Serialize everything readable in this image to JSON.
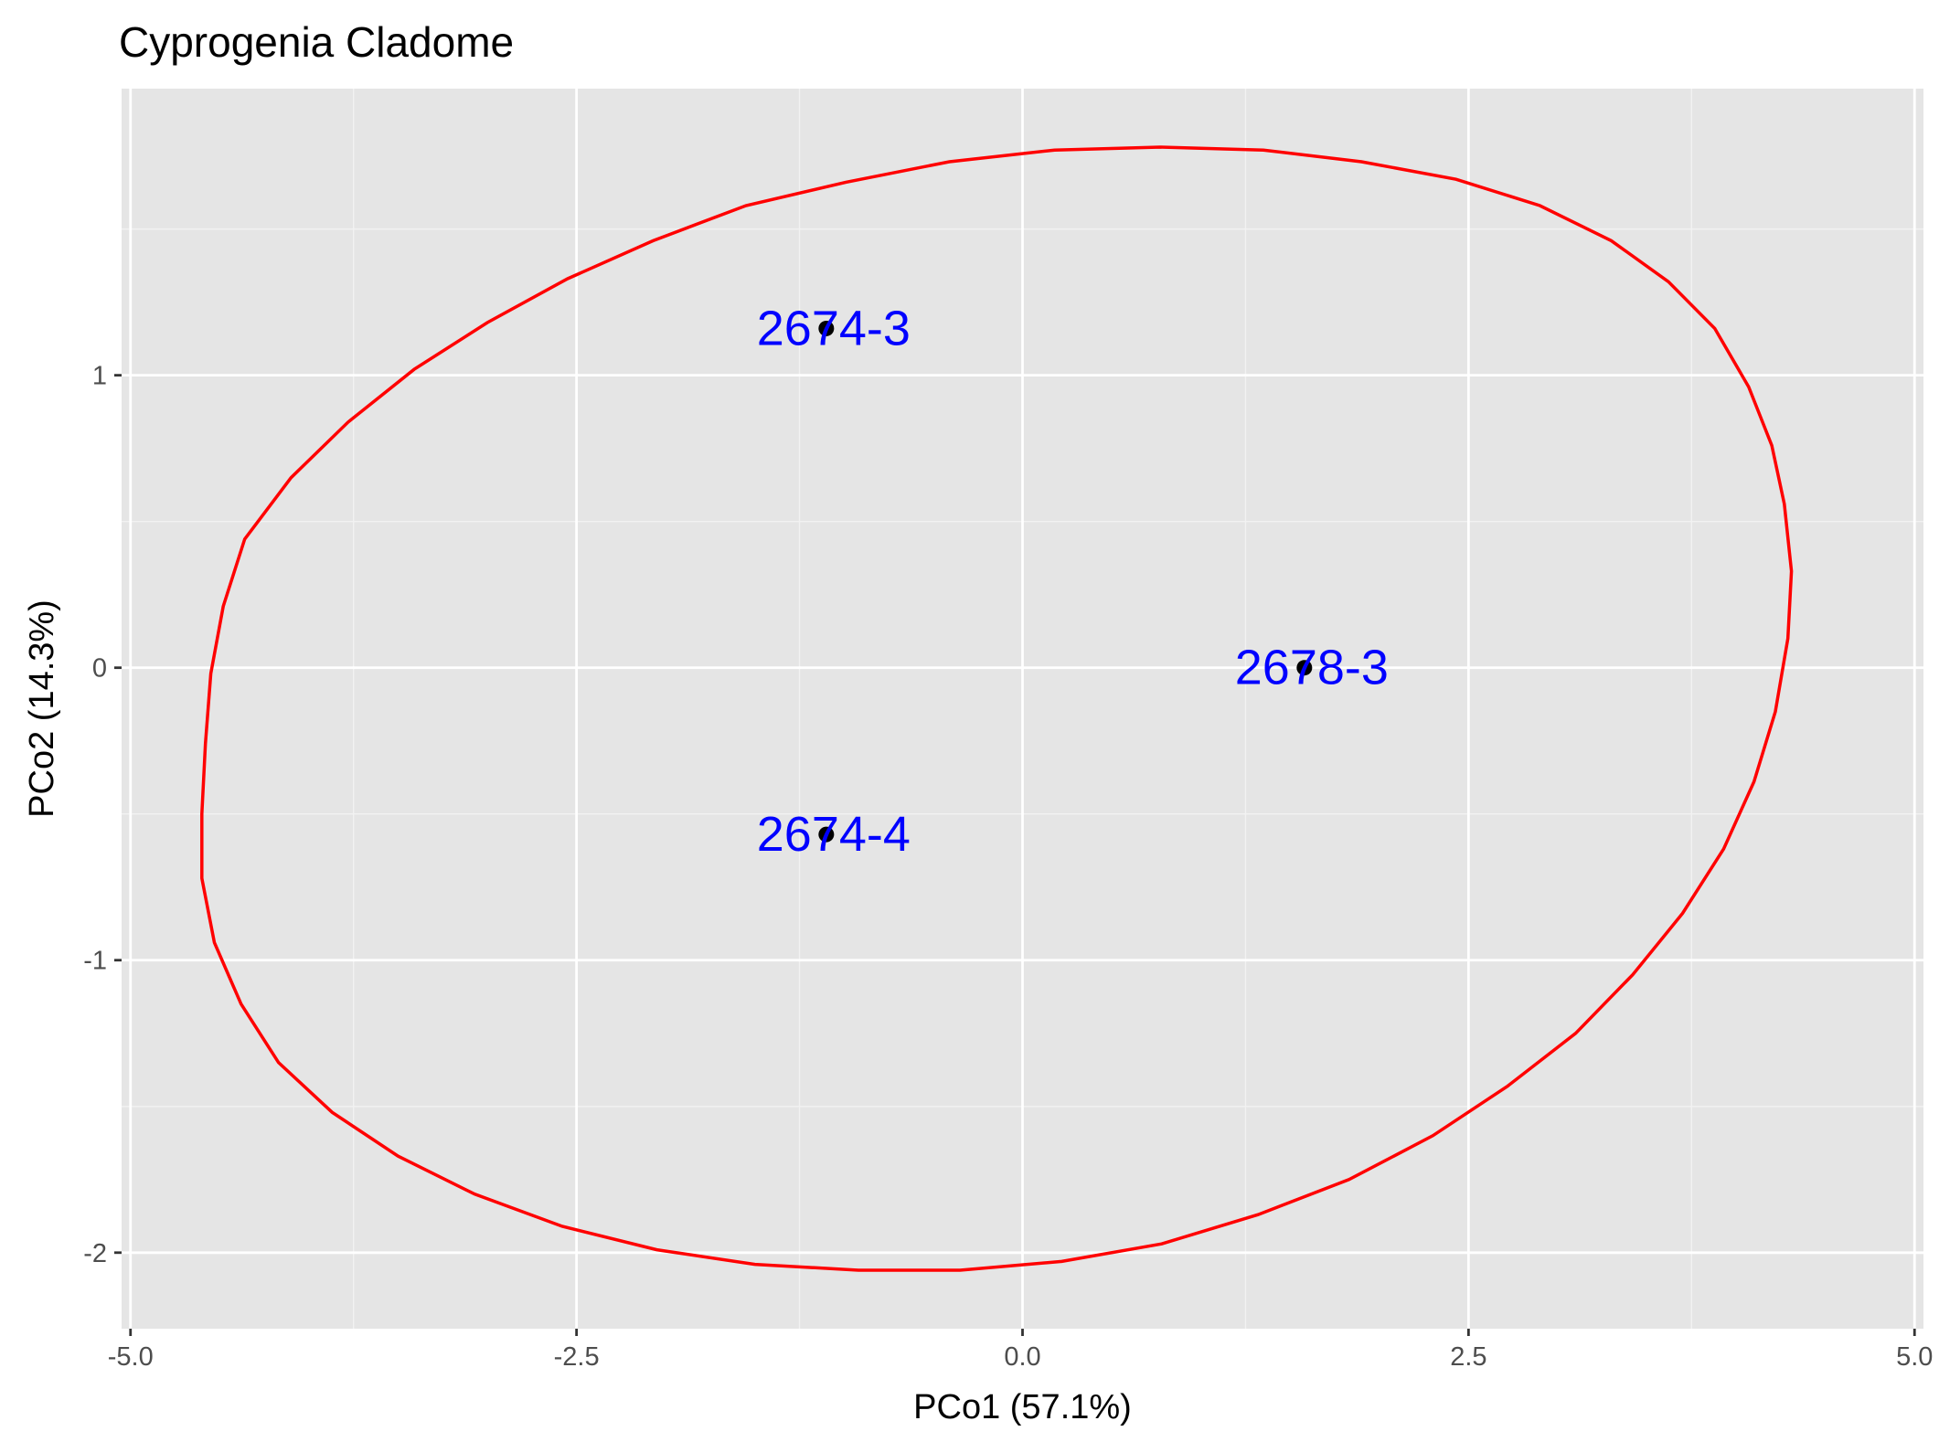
{
  "chart_data": {
    "type": "scatter",
    "title": "Cyprogenia Cladome",
    "xlabel": "PCo1 (57.1%)",
    "ylabel": "PCo2 (14.3%)",
    "xlim": [
      -5.05,
      5.05
    ],
    "ylim": [
      -2.26,
      1.98
    ],
    "x_ticks": [
      -5.0,
      -2.5,
      0.0,
      2.5,
      5.0
    ],
    "x_tick_labels": [
      "-5.0",
      "-2.5",
      "0.0",
      "2.5",
      "5.0"
    ],
    "y_ticks": [
      -2,
      -1,
      0,
      1
    ],
    "y_tick_labels": [
      "-2",
      "-1",
      "0",
      "1"
    ],
    "x_minor": [
      -3.75,
      -1.25,
      1.25,
      3.75
    ],
    "y_minor": [
      -1.5,
      -0.5,
      0.5,
      1.5
    ],
    "grid": true,
    "points": [
      {
        "label": "2674-3",
        "x": -1.1,
        "y": 1.16
      },
      {
        "label": "2678-3",
        "x": 1.58,
        "y": 0.0
      },
      {
        "label": "2674-4",
        "x": -1.1,
        "y": -0.57
      }
    ],
    "ellipse": [
      [
        -4.6,
        -0.5
      ],
      [
        -4.6,
        -0.72
      ],
      [
        -4.53,
        -0.94
      ],
      [
        -4.38,
        -1.15
      ],
      [
        -4.17,
        -1.35
      ],
      [
        -3.87,
        -1.52
      ],
      [
        -3.5,
        -1.67
      ],
      [
        -3.07,
        -1.8
      ],
      [
        -2.58,
        -1.91
      ],
      [
        -2.05,
        -1.99
      ],
      [
        -1.5,
        -2.04
      ],
      [
        -0.92,
        -2.06
      ],
      [
        -0.35,
        -2.06
      ],
      [
        0.22,
        -2.03
      ],
      [
        0.78,
        -1.97
      ],
      [
        1.32,
        -1.87
      ],
      [
        1.83,
        -1.75
      ],
      [
        2.3,
        -1.6
      ],
      [
        2.72,
        -1.43
      ],
      [
        3.1,
        -1.25
      ],
      [
        3.42,
        -1.05
      ],
      [
        3.7,
        -0.84
      ],
      [
        3.93,
        -0.62
      ],
      [
        4.1,
        -0.39
      ],
      [
        4.22,
        -0.15
      ],
      [
        4.29,
        0.1
      ],
      [
        4.31,
        0.33
      ],
      [
        4.27,
        0.56
      ],
      [
        4.2,
        0.76
      ],
      [
        4.07,
        0.96
      ],
      [
        3.88,
        1.16
      ],
      [
        3.62,
        1.32
      ],
      [
        3.3,
        1.46
      ],
      [
        2.9,
        1.58
      ],
      [
        2.43,
        1.67
      ],
      [
        1.9,
        1.73
      ],
      [
        1.35,
        1.77
      ],
      [
        0.77,
        1.78
      ],
      [
        0.18,
        1.77
      ],
      [
        -0.41,
        1.73
      ],
      [
        -0.99,
        1.66
      ],
      [
        -1.55,
        1.58
      ],
      [
        -2.07,
        1.46
      ],
      [
        -2.55,
        1.33
      ],
      [
        -3.0,
        1.18
      ],
      [
        -3.41,
        1.02
      ],
      [
        -3.78,
        0.84
      ],
      [
        -4.1,
        0.65
      ],
      [
        -4.36,
        0.44
      ],
      [
        -4.48,
        0.21
      ],
      [
        -4.55,
        -0.02
      ],
      [
        -4.58,
        -0.26
      ]
    ],
    "colors": {
      "panel_bg": "#e5e5e5",
      "grid_major": "#ffffff",
      "grid_minor": "#f2f2f2",
      "ellipse": "#ff0000",
      "point": "#000000",
      "point_label": "#0000ff"
    }
  }
}
